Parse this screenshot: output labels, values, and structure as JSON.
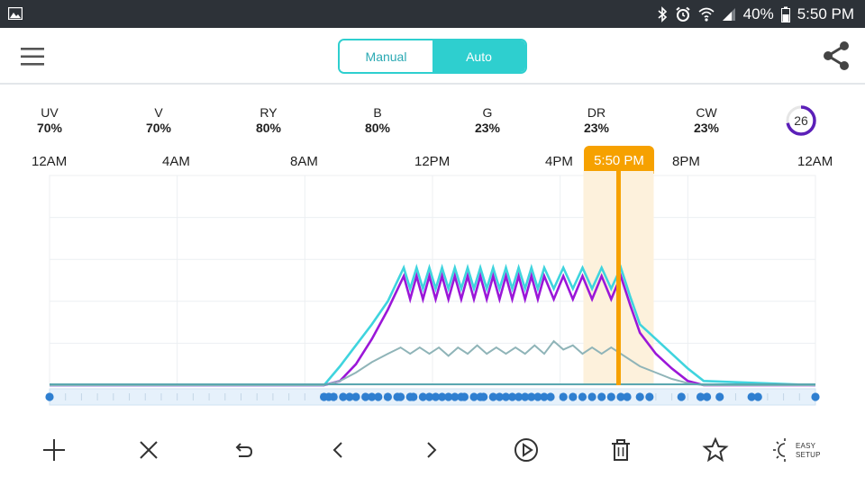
{
  "status": {
    "battery": "40%",
    "time": "5:50 PM",
    "icons": [
      "image-icon",
      "bluetooth-icon",
      "alarm-icon",
      "wifi-icon",
      "signal-icon",
      "battery-icon"
    ]
  },
  "header": {
    "tabs": [
      {
        "label": "Manual",
        "active": false
      },
      {
        "label": "Auto",
        "active": true
      }
    ],
    "menu_icon": "hamburger-menu-icon",
    "share_icon": "share-icon"
  },
  "channels": [
    {
      "label": "UV",
      "value": "70%"
    },
    {
      "label": "V",
      "value": "70%"
    },
    {
      "label": "RY",
      "value": "80%"
    },
    {
      "label": "B",
      "value": "80%"
    },
    {
      "label": "G",
      "value": "23%"
    },
    {
      "label": "DR",
      "value": "23%"
    },
    {
      "label": "CW",
      "value": "23%"
    }
  ],
  "temperature": {
    "value": "26",
    "level": 0.72,
    "color": "#5b1fb8"
  },
  "timeline": {
    "labels": [
      "12AM",
      "4AM",
      "8AM",
      "12PM",
      "4PM",
      "8PM",
      "12AM"
    ],
    "current": "5:50 PM",
    "current_hour": 17.83,
    "accent_color": "#f6a100"
  },
  "chart_data": {
    "type": "line",
    "x_unit": "hour",
    "xlim": [
      0,
      24
    ],
    "ylim": [
      0,
      100
    ],
    "series": [
      {
        "color": "#3fd4de",
        "x": [
          0,
          8.6,
          9.1,
          9.6,
          10.1,
          10.6,
          11.1,
          11.3,
          11.5,
          11.7,
          11.9,
          12.1,
          12.3,
          12.5,
          12.7,
          12.9,
          13.1,
          13.3,
          13.5,
          13.7,
          13.9,
          14.1,
          14.3,
          14.5,
          14.7,
          14.9,
          15.1,
          15.3,
          15.5,
          15.8,
          16.1,
          16.4,
          16.7,
          17.0,
          17.3,
          17.6,
          17.9,
          18.2,
          18.5,
          19.0,
          19.5,
          20.0,
          20.5,
          24
        ],
        "y": [
          0,
          0,
          9,
          19,
          29,
          40,
          56,
          46,
          56,
          46,
          56,
          46,
          56,
          46,
          56,
          46,
          56,
          46,
          56,
          46,
          56,
          46,
          56,
          46,
          56,
          46,
          56,
          46,
          56,
          46,
          56,
          46,
          56,
          46,
          56,
          46,
          56,
          42,
          29,
          22,
          15,
          8,
          2,
          0
        ]
      },
      {
        "color": "#9b17d8",
        "x": [
          0,
          8.6,
          9.1,
          9.6,
          10.1,
          10.6,
          11.1,
          11.3,
          11.5,
          11.7,
          11.9,
          12.1,
          12.3,
          12.5,
          12.7,
          12.9,
          13.1,
          13.3,
          13.5,
          13.7,
          13.9,
          14.1,
          14.3,
          14.5,
          14.7,
          14.9,
          15.1,
          15.3,
          15.5,
          15.8,
          16.1,
          16.4,
          16.7,
          17.0,
          17.3,
          17.6,
          17.9,
          18.2,
          18.5,
          19.0,
          19.5,
          20.0,
          20.5,
          24
        ],
        "y": [
          0,
          0,
          2,
          10,
          22,
          36,
          52,
          41,
          52,
          41,
          52,
          41,
          52,
          41,
          52,
          41,
          52,
          41,
          52,
          41,
          52,
          41,
          52,
          41,
          52,
          41,
          52,
          41,
          52,
          41,
          52,
          41,
          52,
          41,
          52,
          41,
          52,
          38,
          25,
          15,
          8,
          2,
          0,
          0
        ]
      },
      {
        "color": "#8fb4b8",
        "x": [
          0,
          8.6,
          9.1,
          9.6,
          10.1,
          10.6,
          11.0,
          11.3,
          11.6,
          11.9,
          12.2,
          12.5,
          12.8,
          13.1,
          13.4,
          13.7,
          14.0,
          14.3,
          14.6,
          14.9,
          15.2,
          15.5,
          15.8,
          16.1,
          16.4,
          16.7,
          17.0,
          17.3,
          17.6,
          17.9,
          18.2,
          18.5,
          19.0,
          19.5,
          20.0,
          20.5,
          24
        ],
        "y": [
          0,
          0,
          2,
          6,
          11,
          15,
          18,
          15,
          18,
          15,
          18,
          14,
          18,
          15,
          19,
          15,
          18,
          15,
          18,
          15,
          19,
          15,
          21,
          17,
          19,
          15,
          18,
          15,
          18,
          15,
          12,
          9,
          6,
          3,
          1,
          0,
          0
        ]
      }
    ],
    "keyframes": [
      0,
      8.6,
      8.75,
      8.9,
      9.2,
      9.4,
      9.6,
      9.9,
      10.1,
      10.3,
      10.6,
      10.9,
      11.0,
      11.3,
      11.4,
      11.7,
      11.9,
      12.1,
      12.3,
      12.5,
      12.7,
      12.9,
      13.0,
      13.3,
      13.5,
      13.6,
      13.9,
      14.1,
      14.3,
      14.5,
      14.7,
      14.9,
      15.1,
      15.3,
      15.5,
      15.7,
      16.1,
      16.4,
      16.7,
      17.0,
      17.3,
      17.6,
      17.9,
      18.1,
      18.5,
      18.8,
      19.8,
      20.4,
      20.6,
      21.0,
      22.0,
      22.2,
      24
    ]
  },
  "toolbar": {
    "icons": [
      "add-icon",
      "close-icon",
      "undo-icon",
      "chevron-left-icon",
      "chevron-right-icon",
      "play-icon",
      "trash-icon",
      "star-icon",
      "brightness-icon"
    ],
    "easy_setup": "EASY\nSETUP"
  }
}
